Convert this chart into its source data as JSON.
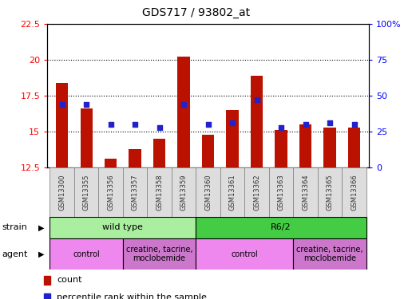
{
  "title": "GDS717 / 93802_at",
  "samples": [
    "GSM13300",
    "GSM13355",
    "GSM13356",
    "GSM13357",
    "GSM13358",
    "GSM13359",
    "GSM13360",
    "GSM13361",
    "GSM13362",
    "GSM13363",
    "GSM13364",
    "GSM13365",
    "GSM13366"
  ],
  "count_values": [
    18.4,
    16.6,
    13.1,
    13.8,
    14.5,
    20.2,
    14.8,
    16.5,
    18.9,
    15.1,
    15.5,
    15.3,
    15.3
  ],
  "percentile_values": [
    44,
    44,
    30,
    30,
    28,
    44,
    30,
    31,
    47,
    28,
    30,
    31,
    30
  ],
  "ylim_left": [
    12.5,
    22.5
  ],
  "ylim_right": [
    0,
    100
  ],
  "yticks_left": [
    12.5,
    15.0,
    17.5,
    20.0,
    22.5
  ],
  "yticks_right": [
    0,
    25,
    50,
    75,
    100
  ],
  "ytick_labels_left": [
    "12.5",
    "15",
    "17.5",
    "20",
    "22.5"
  ],
  "ytick_labels_right": [
    "0",
    "25",
    "50",
    "75",
    "100%"
  ],
  "bar_color": "#bb1100",
  "dot_color": "#2222cc",
  "bar_bottom": 12.5,
  "strain_groups": [
    {
      "label": "wild type",
      "start": 0,
      "end": 6,
      "color": "#aaeea0"
    },
    {
      "label": "R6/2",
      "start": 6,
      "end": 13,
      "color": "#44cc44"
    }
  ],
  "agent_groups": [
    {
      "label": "control",
      "start": 0,
      "end": 3,
      "color": "#ee88ee"
    },
    {
      "label": "creatine, tacrine,\nmoclobemide",
      "start": 3,
      "end": 6,
      "color": "#cc77cc"
    },
    {
      "label": "control",
      "start": 6,
      "end": 10,
      "color": "#ee88ee"
    },
    {
      "label": "creatine, tacrine,\nmoclobemide",
      "start": 10,
      "end": 13,
      "color": "#cc77cc"
    }
  ],
  "strain_label": "strain",
  "agent_label": "agent",
  "legend_count_label": "count",
  "legend_percentile_label": "percentile rank within the sample",
  "background_color": "#ffffff"
}
